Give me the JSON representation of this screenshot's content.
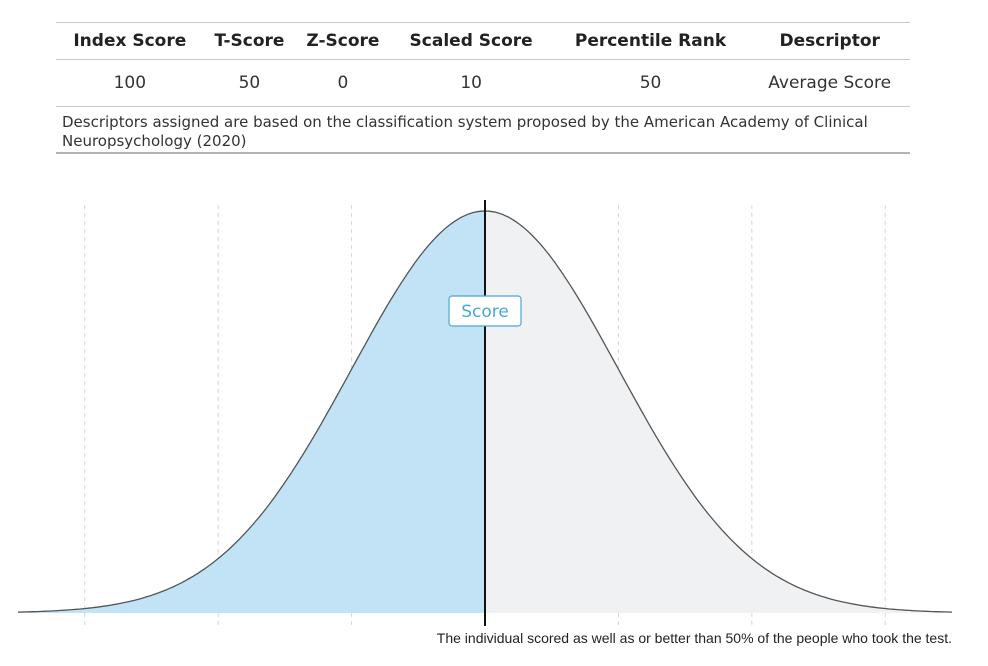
{
  "table": {
    "headers": [
      "Index Score",
      "T-Score",
      "Z-Score",
      "Scaled Score",
      "Percentile Rank",
      "Descriptor"
    ],
    "row": [
      "100",
      "50",
      "0",
      "10",
      "50",
      "Average Score"
    ]
  },
  "note": "Descriptors assigned are based on the classification system proposed by the American Academy of Clinical Neuropsychology (2020)",
  "chart_data": {
    "type": "area",
    "distribution": "normal",
    "x_unit": "z-score",
    "xlim": [
      -3.5,
      3.5
    ],
    "gridlines_z": [
      -3,
      -2,
      -1,
      0,
      1,
      2,
      3
    ],
    "grid": true,
    "score_z": 0,
    "marker_label": "Score",
    "colors": {
      "below": "#c2e2f5",
      "above": "#f0f1f3",
      "curve": "#555555",
      "marker": "#111111",
      "badge": "#4aa8d8"
    }
  },
  "caption": "The individual scored as well as or better than 50% of the people who took the test."
}
